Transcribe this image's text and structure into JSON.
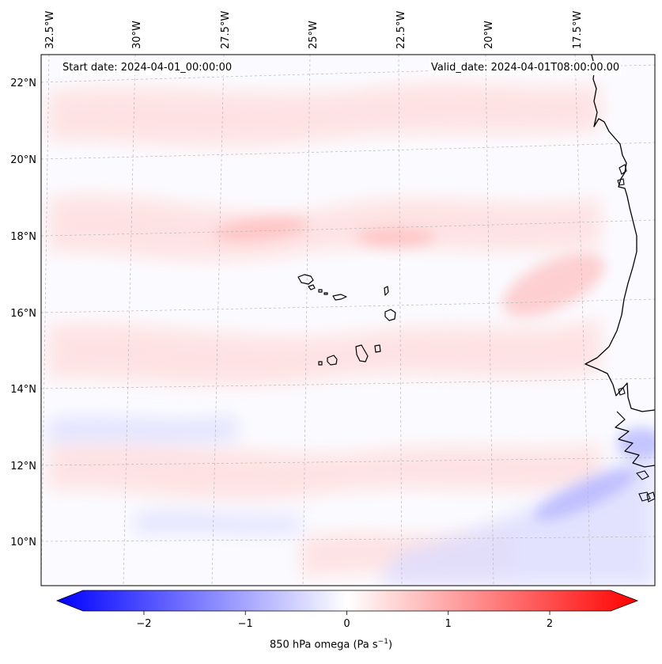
{
  "header": {
    "start_date": "Start date: 2024-04-01_00:00:00",
    "valid_date": "Valid_date: 2024-04-01T08:00:00.00"
  },
  "map": {
    "projection": "Lambert conformal",
    "lon_labels": [
      "32.5°W",
      "30°W",
      "27.5°W",
      "25°W",
      "22.5°W",
      "20°W",
      "17.5°W"
    ],
    "lat_labels": [
      "22°N",
      "20°N",
      "18°N",
      "16°N",
      "14°N",
      "12°N",
      "10°N"
    ],
    "field": "850 hPa omega",
    "places": [
      "Cape Verde islands",
      "West African coast"
    ]
  },
  "colorbar": {
    "label": "850 hPa omega (Pa s",
    "label_sup": "−1",
    "label_close": ")",
    "ticks": [
      "−2",
      "−1",
      "0",
      "1",
      "2"
    ],
    "tick_values": [
      -2,
      -1,
      0,
      1,
      2
    ],
    "range": [
      -2.6,
      2.6
    ],
    "extend": "both",
    "colors": {
      "neg": "#0000ff",
      "mid": "#ffffff",
      "pos": "#ff0000"
    }
  }
}
